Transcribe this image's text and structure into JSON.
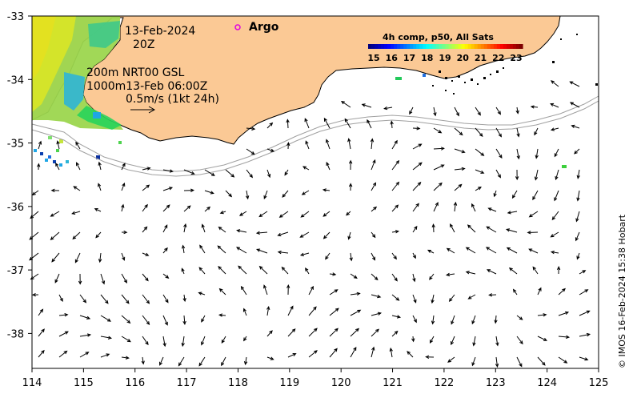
{
  "title": {
    "date": "13-Feb-2024",
    "time": "20Z"
  },
  "argo": {
    "label": "Argo",
    "marker_color": "#e000e0"
  },
  "annotations": {
    "isobaths_line1": "200m  NRT00 GSL",
    "isobaths_line2": "1000m13-Feb 06:00Z",
    "scale_label": "0.5m/s (1kt 24h)"
  },
  "legend": {
    "title": "4h comp, p50, All Sats",
    "ticks": [
      "15",
      "16",
      "17",
      "18",
      "19",
      "20",
      "21",
      "22",
      "23"
    ],
    "colors": [
      "#00007f",
      "#0000ff",
      "#007fff",
      "#00ffff",
      "#7fff7f",
      "#ffff00",
      "#ff7f00",
      "#ff0000",
      "#7f0000"
    ]
  },
  "credit": "© IMOS 16-Feb-2024 15:38 Hobart",
  "colors": {
    "land": "#fbc995",
    "coast": "#000000",
    "isobath": "#a0a0a0",
    "arrows": "#000000"
  },
  "chart_data": {
    "type": "map",
    "x_axis": {
      "ticks": [
        "114",
        "115",
        "116",
        "117",
        "118",
        "119",
        "120",
        "121",
        "122",
        "123",
        "124",
        "125"
      ],
      "range": [
        114,
        125
      ]
    },
    "y_axis": {
      "ticks": [
        "-33",
        "-34",
        "-35",
        "-36",
        "-37",
        "-38"
      ],
      "range": [
        -38.55,
        -33
      ]
    }
  }
}
